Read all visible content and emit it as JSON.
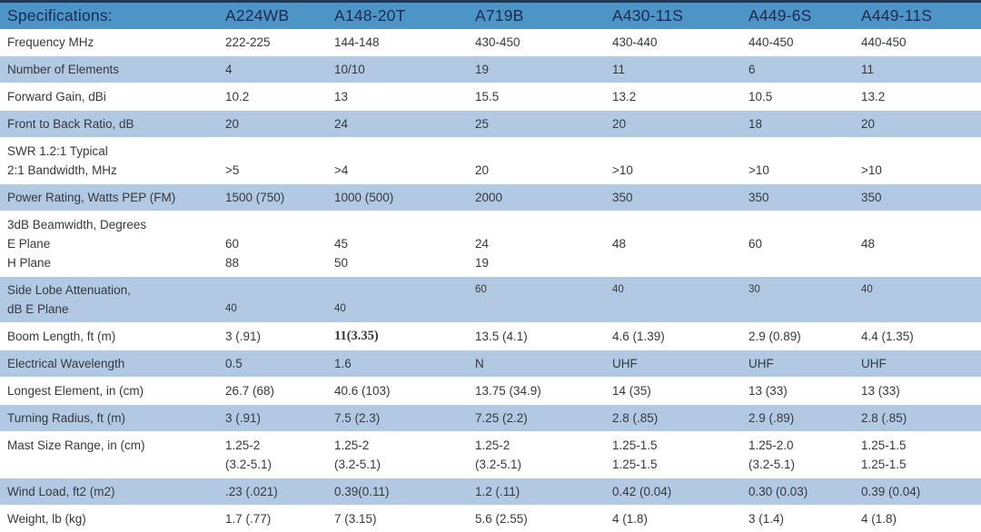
{
  "header": {
    "label": "Specifications:",
    "columns": [
      "A224WB",
      "A148-20T",
      "A719B",
      "A430-11S",
      "A449-6S",
      "A449-11S"
    ]
  },
  "colors": {
    "header_bg": "#4d94c7",
    "shade_row_bg": "#b2c9e4",
    "top_strip": "#1e3a5c",
    "header_text": "#1c2b4f",
    "body_text": "#36393c"
  },
  "rows": [
    {
      "shade": false,
      "label": [
        "Frequency MHz"
      ],
      "cells": [
        [
          "222-225"
        ],
        [
          "144-148"
        ],
        [
          "430-450"
        ],
        [
          "430-440"
        ],
        [
          "440-450"
        ],
        [
          "440-450"
        ]
      ]
    },
    {
      "shade": true,
      "label": [
        "Number of Elements"
      ],
      "cells": [
        [
          "4"
        ],
        [
          "10/10"
        ],
        [
          "19"
        ],
        [
          "11"
        ],
        [
          "6"
        ],
        [
          "11"
        ]
      ]
    },
    {
      "shade": false,
      "label": [
        "Forward Gain, dBi"
      ],
      "cells": [
        [
          "10.2"
        ],
        [
          "13"
        ],
        [
          "15.5"
        ],
        [
          "13.2"
        ],
        [
          "10.5"
        ],
        [
          "13.2"
        ]
      ]
    },
    {
      "shade": true,
      "label": [
        "Front to Back Ratio, dB"
      ],
      "cells": [
        [
          "20"
        ],
        [
          "24"
        ],
        [
          "25"
        ],
        [
          "20"
        ],
        [
          "18"
        ],
        [
          "20"
        ]
      ]
    },
    {
      "shade": false,
      "label": [
        "SWR 1.2:1 Typical",
        "2:1 Bandwidth, MHz"
      ],
      "cells": [
        [
          "",
          ">5"
        ],
        [
          "",
          ">4"
        ],
        [
          "",
          "20"
        ],
        [
          "",
          ">10"
        ],
        [
          "",
          ">10"
        ],
        [
          "",
          ">10"
        ]
      ]
    },
    {
      "shade": true,
      "label": [
        "Power Rating, Watts PEP (FM)"
      ],
      "cells": [
        [
          "1500 (750)"
        ],
        [
          "1000 (500)"
        ],
        [
          "2000"
        ],
        [
          "350"
        ],
        [
          "350"
        ],
        [
          "350"
        ]
      ]
    },
    {
      "shade": false,
      "label": [
        "3dB Beamwidth, Degrees",
        "E Plane",
        "H Plane"
      ],
      "cells": [
        [
          "",
          "60",
          "88"
        ],
        [
          "",
          "45",
          "50"
        ],
        [
          "",
          "24",
          "19"
        ],
        [
          "",
          "48"
        ],
        [
          "",
          "60"
        ],
        [
          "",
          "48"
        ]
      ]
    },
    {
      "shade": true,
      "label": [
        "Side Lobe Attenuation,",
        "dB E Plane"
      ],
      "cells": [
        {
          "lines": [
            "",
            "40"
          ],
          "small": true
        },
        {
          "lines": [
            "",
            "40"
          ],
          "small": true
        },
        {
          "lines": [
            "60"
          ],
          "small": true
        },
        {
          "lines": [
            "40"
          ],
          "small": true
        },
        {
          "lines": [
            "30"
          ],
          "small": true
        },
        {
          "lines": [
            "40"
          ],
          "small": true
        }
      ]
    },
    {
      "shade": false,
      "label": [
        "Boom Length, ft (m)"
      ],
      "cells": [
        [
          "3 (.91)"
        ],
        {
          "lines": [
            "11(3.35)"
          ],
          "serifBold": true
        },
        [
          "13.5 (4.1)"
        ],
        [
          "4.6 (1.39)"
        ],
        [
          "2.9 (0.89)"
        ],
        [
          "4.4 (1.35)"
        ]
      ]
    },
    {
      "shade": true,
      "label": [
        "Electrical Wavelength"
      ],
      "cells": [
        [
          "0.5"
        ],
        [
          "1.6"
        ],
        [
          "N"
        ],
        [
          "UHF"
        ],
        [
          "UHF"
        ],
        [
          "UHF"
        ]
      ]
    },
    {
      "shade": false,
      "label": [
        "Longest Element, in (cm)"
      ],
      "cells": [
        [
          "26.7 (68)"
        ],
        [
          "40.6 (103)"
        ],
        [
          "13.75 (34.9)"
        ],
        [
          "14 (35)"
        ],
        [
          "13 (33)"
        ],
        [
          "13 (33)"
        ]
      ]
    },
    {
      "shade": true,
      "label": [
        "Turning Radius, ft (m)"
      ],
      "cells": [
        [
          "3 (.91)"
        ],
        [
          "7.5 (2.3)"
        ],
        [
          "7.25 (2.2)"
        ],
        [
          "2.8 (.85)"
        ],
        [
          "2.9 (.89)"
        ],
        [
          "2.8 (.85)"
        ]
      ]
    },
    {
      "shade": false,
      "label": [
        "Mast Size Range, in (cm)"
      ],
      "cells": [
        [
          "1.25-2",
          "(3.2-5.1)"
        ],
        [
          "1.25-2",
          "(3.2-5.1)"
        ],
        [
          "1.25-2",
          "(3.2-5.1)"
        ],
        [
          "1.25-1.5",
          "1.25-1.5"
        ],
        [
          "1.25-2.0",
          "(3.2-5.1)"
        ],
        [
          "1.25-1.5",
          "1.25-1.5"
        ]
      ]
    },
    {
      "shade": true,
      "label": [
        "Wind Load, ft2 (m2)"
      ],
      "cells": [
        [
          ".23 (.021)"
        ],
        [
          "0.39(0.11)"
        ],
        [
          "1.2 (.11)"
        ],
        [
          "0.42 (0.04)"
        ],
        [
          "0.30 (0.03)"
        ],
        [
          "0.39 (0.04)"
        ]
      ]
    },
    {
      "shade": false,
      "label": [
        "Weight, lb (kg)"
      ],
      "cells": [
        [
          "1.7 (.77)"
        ],
        [
          "7 (3.15)"
        ],
        [
          "5.6 (2.55)"
        ],
        [
          "4 (1.8)"
        ],
        [
          "3 (1.4)"
        ],
        [
          "4 (1.8)"
        ]
      ]
    }
  ]
}
